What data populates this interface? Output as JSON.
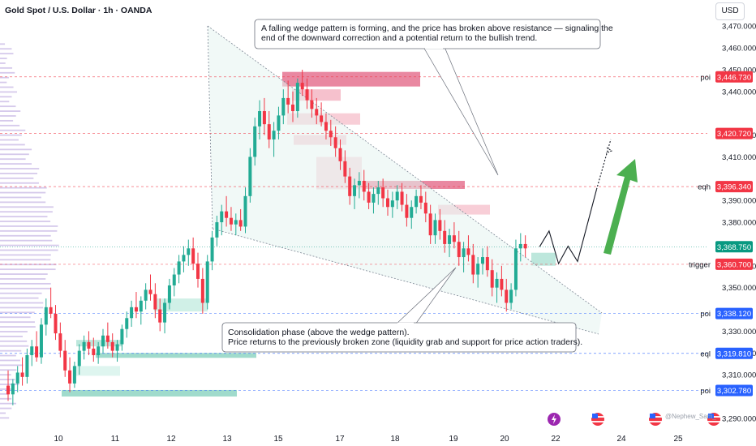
{
  "header": {
    "title": "Gold Spot / U.S. Dollar · 1h · OANDA",
    "currency": "USD"
  },
  "annotations": {
    "top_note": [
      "A falling wedge pattern is forming, and the price has broken above resistance — signaling the",
      "end of the downward correction and a potential return to the bullish trend."
    ],
    "bottom_note": [
      "Consolidation phase (above the wedge pattern).",
      "Price returns to the previously broken zone (liquidity grab and support for price action traders)."
    ],
    "watermark": "@Nephew_Sam_"
  },
  "chart_data": {
    "type": "candlestick",
    "title": "Gold Spot / U.S. Dollar · 1h · OANDA",
    "ylim": [
      3290,
      3480
    ],
    "y_ticks": [
      3290,
      3310,
      3320,
      3330,
      3350,
      3360,
      3380,
      3390,
      3410,
      3420,
      3440,
      3450,
      3460,
      3470
    ],
    "y_tick_labels": [
      "3,290.000",
      "3,310.000",
      "3,320.000",
      "3,330.000",
      "3,350.000",
      "3,360.000",
      "3,380.000",
      "3,390.000",
      "3,410.000",
      "3,420.000",
      "3,440.000",
      "3,450.000",
      "3,460.000",
      "3,470.000"
    ],
    "x_ticks": [
      "10",
      "11",
      "12",
      "13",
      "15",
      "17",
      "18",
      "19",
      "20",
      "22",
      "24",
      "25"
    ],
    "grid": false,
    "colors": {
      "up": "#22ab94",
      "down": "#f23645",
      "tag_red": "#f23645",
      "tag_green": "#089981",
      "tag_blue": "#2962ff",
      "arrow": "#4caf50"
    },
    "current_price": {
      "value": 3368.75,
      "label": "3,368.750"
    },
    "levels": [
      {
        "name": "poi",
        "value": 3446.73,
        "label": "3,446.730",
        "color": "red"
      },
      {
        "name": "",
        "value": 3420.72,
        "label": "3,420.720",
        "color": "red"
      },
      {
        "name": "eqh",
        "value": 3396.34,
        "label": "3,396.340",
        "color": "red"
      },
      {
        "name": "trigger",
        "value": 3360.7,
        "label": "3,360.700",
        "color": "red"
      },
      {
        "name": "poi",
        "value": 3338.12,
        "label": "3,338.120",
        "color": "blue"
      },
      {
        "name": "eql",
        "value": 3319.81,
        "label": "3,319.810",
        "color": "blue"
      },
      {
        "name": "poi",
        "value": 3302.78,
        "label": "3,302.780",
        "color": "blue"
      }
    ],
    "series": [
      {
        "name": "",
        "ohlc": [
          [
            3305,
            3312,
            3298,
            3301
          ],
          [
            3301,
            3308,
            3296,
            3306
          ],
          [
            3306,
            3314,
            3302,
            3311
          ],
          [
            3311,
            3318,
            3305,
            3309
          ],
          [
            3309,
            3322,
            3306,
            3319
          ],
          [
            3319,
            3326,
            3314,
            3323
          ],
          [
            3323,
            3330,
            3316,
            3318
          ],
          [
            3318,
            3336,
            3315,
            3333
          ],
          [
            3333,
            3345,
            3328,
            3341
          ],
          [
            3341,
            3350,
            3336,
            3338
          ],
          [
            3338,
            3342,
            3326,
            3329
          ],
          [
            3329,
            3334,
            3318,
            3321
          ],
          [
            3321,
            3326,
            3309,
            3312
          ],
          [
            3312,
            3318,
            3302,
            3306
          ],
          [
            3306,
            3316,
            3304,
            3314
          ],
          [
            3314,
            3324,
            3310,
            3321
          ],
          [
            3321,
            3328,
            3317,
            3325
          ],
          [
            3325,
            3330,
            3319,
            3322
          ],
          [
            3322,
            3327,
            3316,
            3319
          ],
          [
            3319,
            3325,
            3315,
            3323
          ],
          [
            3323,
            3331,
            3320,
            3328
          ],
          [
            3328,
            3334,
            3322,
            3325
          ],
          [
            3325,
            3329,
            3318,
            3321
          ],
          [
            3321,
            3326,
            3316,
            3324
          ],
          [
            3324,
            3333,
            3321,
            3331
          ],
          [
            3331,
            3339,
            3327,
            3336
          ],
          [
            3336,
            3344,
            3332,
            3341
          ],
          [
            3341,
            3348,
            3336,
            3339
          ],
          [
            3339,
            3346,
            3333,
            3344
          ],
          [
            3344,
            3352,
            3340,
            3349
          ],
          [
            3349,
            3356,
            3344,
            3347
          ],
          [
            3347,
            3352,
            3336,
            3340
          ],
          [
            3340,
            3345,
            3330,
            3334
          ],
          [
            3334,
            3345,
            3329,
            3343
          ],
          [
            3343,
            3354,
            3340,
            3351
          ],
          [
            3351,
            3359,
            3346,
            3356
          ],
          [
            3356,
            3365,
            3352,
            3362
          ],
          [
            3362,
            3369,
            3357,
            3365
          ],
          [
            3365,
            3372,
            3360,
            3368
          ],
          [
            3368,
            3373,
            3358,
            3361
          ],
          [
            3361,
            3366,
            3350,
            3354
          ],
          [
            3354,
            3359,
            3338,
            3343
          ],
          [
            3343,
            3365,
            3340,
            3362
          ],
          [
            3362,
            3376,
            3358,
            3373
          ],
          [
            3373,
            3383,
            3369,
            3380
          ],
          [
            3380,
            3388,
            3374,
            3385
          ],
          [
            3385,
            3392,
            3378,
            3382
          ],
          [
            3382,
            3387,
            3376,
            3379
          ],
          [
            3379,
            3384,
            3374,
            3381
          ],
          [
            3381,
            3386,
            3376,
            3378
          ],
          [
            3378,
            3396,
            3375,
            3392
          ],
          [
            3392,
            3414,
            3389,
            3410
          ],
          [
            3410,
            3428,
            3406,
            3424
          ],
          [
            3424,
            3436,
            3418,
            3431
          ],
          [
            3431,
            3437,
            3420,
            3425
          ],
          [
            3425,
            3431,
            3414,
            3418
          ],
          [
            3418,
            3426,
            3410,
            3422
          ],
          [
            3422,
            3433,
            3418,
            3429
          ],
          [
            3429,
            3441,
            3425,
            3437
          ],
          [
            3437,
            3445,
            3430,
            3434
          ],
          [
            3434,
            3440,
            3426,
            3431
          ],
          [
            3431,
            3446,
            3428,
            3444
          ],
          [
            3444,
            3450,
            3438,
            3441
          ],
          [
            3441,
            3446,
            3432,
            3436
          ],
          [
            3436,
            3441,
            3428,
            3432
          ],
          [
            3432,
            3437,
            3425,
            3429
          ],
          [
            3429,
            3435,
            3424,
            3426
          ],
          [
            3426,
            3430,
            3418,
            3422
          ],
          [
            3422,
            3427,
            3415,
            3419
          ],
          [
            3419,
            3424,
            3410,
            3414
          ],
          [
            3414,
            3418,
            3404,
            3408
          ],
          [
            3408,
            3413,
            3398,
            3401
          ],
          [
            3401,
            3405,
            3388,
            3392
          ],
          [
            3392,
            3400,
            3386,
            3397
          ],
          [
            3397,
            3403,
            3391,
            3399
          ],
          [
            3399,
            3404,
            3390,
            3394
          ],
          [
            3394,
            3398,
            3386,
            3389
          ],
          [
            3389,
            3396,
            3384,
            3393
          ],
          [
            3393,
            3399,
            3388,
            3396
          ],
          [
            3396,
            3400,
            3387,
            3391
          ],
          [
            3391,
            3395,
            3383,
            3387
          ],
          [
            3387,
            3394,
            3382,
            3390
          ],
          [
            3390,
            3397,
            3386,
            3394
          ],
          [
            3394,
            3398,
            3385,
            3388
          ],
          [
            3388,
            3393,
            3378,
            3382
          ],
          [
            3382,
            3390,
            3377,
            3387
          ],
          [
            3387,
            3395,
            3384,
            3392
          ],
          [
            3392,
            3397,
            3386,
            3389
          ],
          [
            3389,
            3394,
            3380,
            3384
          ],
          [
            3384,
            3388,
            3370,
            3374
          ],
          [
            3374,
            3384,
            3370,
            3381
          ],
          [
            3381,
            3386,
            3372,
            3376
          ],
          [
            3376,
            3381,
            3366,
            3370
          ],
          [
            3370,
            3377,
            3364,
            3374
          ],
          [
            3374,
            3380,
            3368,
            3371
          ],
          [
            3371,
            3376,
            3360,
            3364
          ],
          [
            3364,
            3371,
            3357,
            3368
          ],
          [
            3368,
            3374,
            3362,
            3365
          ],
          [
            3365,
            3370,
            3352,
            3356
          ],
          [
            3356,
            3364,
            3350,
            3361
          ],
          [
            3361,
            3368,
            3356,
            3364
          ],
          [
            3364,
            3369,
            3355,
            3358
          ],
          [
            3358,
            3363,
            3346,
            3350
          ],
          [
            3350,
            3357,
            3343,
            3354
          ],
          [
            3354,
            3360,
            3346,
            3349
          ],
          [
            3349,
            3354,
            3339,
            3343
          ],
          [
            3343,
            3352,
            3340,
            3349
          ],
          [
            3349,
            3372,
            3346,
            3368
          ],
          [
            3368,
            3375,
            3362,
            3370
          ],
          [
            3370,
            3374,
            3364,
            3368
          ]
        ]
      }
    ],
    "projection_path": [
      {
        "index": 112,
        "value": 3368.75
      },
      {
        "index": 114,
        "value": 3376
      },
      {
        "index": 116,
        "value": 3361
      },
      {
        "index": 118,
        "value": 3369
      },
      {
        "index": 120,
        "value": 3362
      },
      {
        "index": 124,
        "value": 3395
      },
      {
        "index": 127,
        "value": 3418
      }
    ]
  }
}
